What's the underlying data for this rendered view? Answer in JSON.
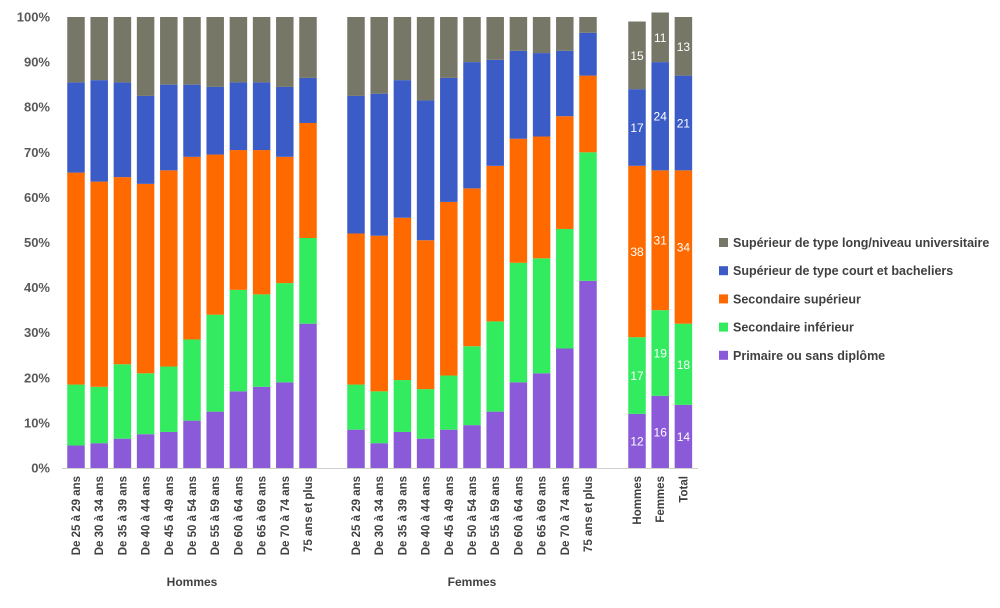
{
  "chart_data": {
    "type": "bar",
    "stacked": true,
    "percent": true,
    "ylim": [
      0,
      100
    ],
    "yticks": [
      "0%",
      "10%",
      "20%",
      "30%",
      "40%",
      "50%",
      "60%",
      "70%",
      "80%",
      "90%",
      "100%"
    ],
    "legend_position": "right",
    "series": [
      {
        "name": "Primaire ou sans diplôme",
        "color": "#8A5AD8"
      },
      {
        "name": "Secondaire inférieur",
        "color": "#33EB5E"
      },
      {
        "name": "Secondaire supérieur",
        "color": "#FF6A00"
      },
      {
        "name": "Supérieur de type court et bacheliers",
        "color": "#3B5CC6"
      },
      {
        "name": "Supérieur de type long/niveau universitaire",
        "color": "#767767"
      }
    ],
    "groups": [
      {
        "label": "Hommes",
        "categories": [
          "De 25 à 29 ans",
          "De 30 à 34 ans",
          "De 35 à 39 ans",
          "De 40 à 44 ans",
          "De 45 à 49 ans",
          "De 50 à 54 ans",
          "De 55 à 59 ans",
          "De 60 à 64 ans",
          "De 65 à 69 ans",
          "De 70 à 74 ans",
          "75 ans et plus"
        ],
        "values": [
          [
            5,
            13.5,
            47,
            20,
            14.5
          ],
          [
            5.5,
            12.5,
            45.5,
            22.5,
            14
          ],
          [
            6.5,
            16.5,
            41.5,
            21,
            14.5
          ],
          [
            7.5,
            13.5,
            42,
            19.5,
            17.5
          ],
          [
            8,
            14.5,
            43.5,
            19,
            15
          ],
          [
            10.5,
            18,
            40.5,
            16,
            15
          ],
          [
            12.5,
            21.5,
            35.5,
            15,
            15.5
          ],
          [
            17,
            22.5,
            31,
            15,
            14.5
          ],
          [
            18,
            20.5,
            32,
            15,
            14.5
          ],
          [
            19,
            22,
            28,
            15.5,
            15.5
          ],
          [
            32,
            19,
            25.5,
            10,
            13.5
          ]
        ]
      },
      {
        "label": "Femmes",
        "categories": [
          "De 25 à 29 ans",
          "De 30 à 34 ans",
          "De 35 à 39 ans",
          "De 40 à 44 ans",
          "De 45 à 49 ans",
          "De 50 à 54 ans",
          "De 55 à 59 ans",
          "De 60 à 64 ans",
          "De 65 à 69 ans",
          "De 70 à 74 ans",
          "75 ans et plus"
        ],
        "values": [
          [
            8.5,
            10,
            33.5,
            30.5,
            17.5
          ],
          [
            5.5,
            11.5,
            34.5,
            31.5,
            17
          ],
          [
            8,
            11.5,
            36,
            30.5,
            14
          ],
          [
            6.5,
            11,
            33,
            31,
            18.5
          ],
          [
            8.5,
            12,
            38.5,
            27.5,
            13.5
          ],
          [
            9.5,
            17.5,
            35,
            28,
            10
          ],
          [
            12.5,
            20,
            34.5,
            23.5,
            9.5
          ],
          [
            19,
            26.5,
            27.5,
            19.5,
            7.5
          ],
          [
            21,
            25.5,
            27,
            18.5,
            8
          ],
          [
            26.5,
            26.5,
            25,
            14.5,
            7.5
          ],
          [
            41.5,
            28.5,
            17,
            9.5,
            3.5
          ]
        ]
      },
      {
        "label": "",
        "categories": [
          "Hommes",
          "Femmes",
          "Total"
        ],
        "values": [
          [
            12,
            17,
            38,
            17,
            15
          ],
          [
            16,
            19,
            31,
            24,
            11
          ],
          [
            14,
            18,
            34,
            21,
            13
          ]
        ],
        "data_labels": true
      }
    ]
  }
}
